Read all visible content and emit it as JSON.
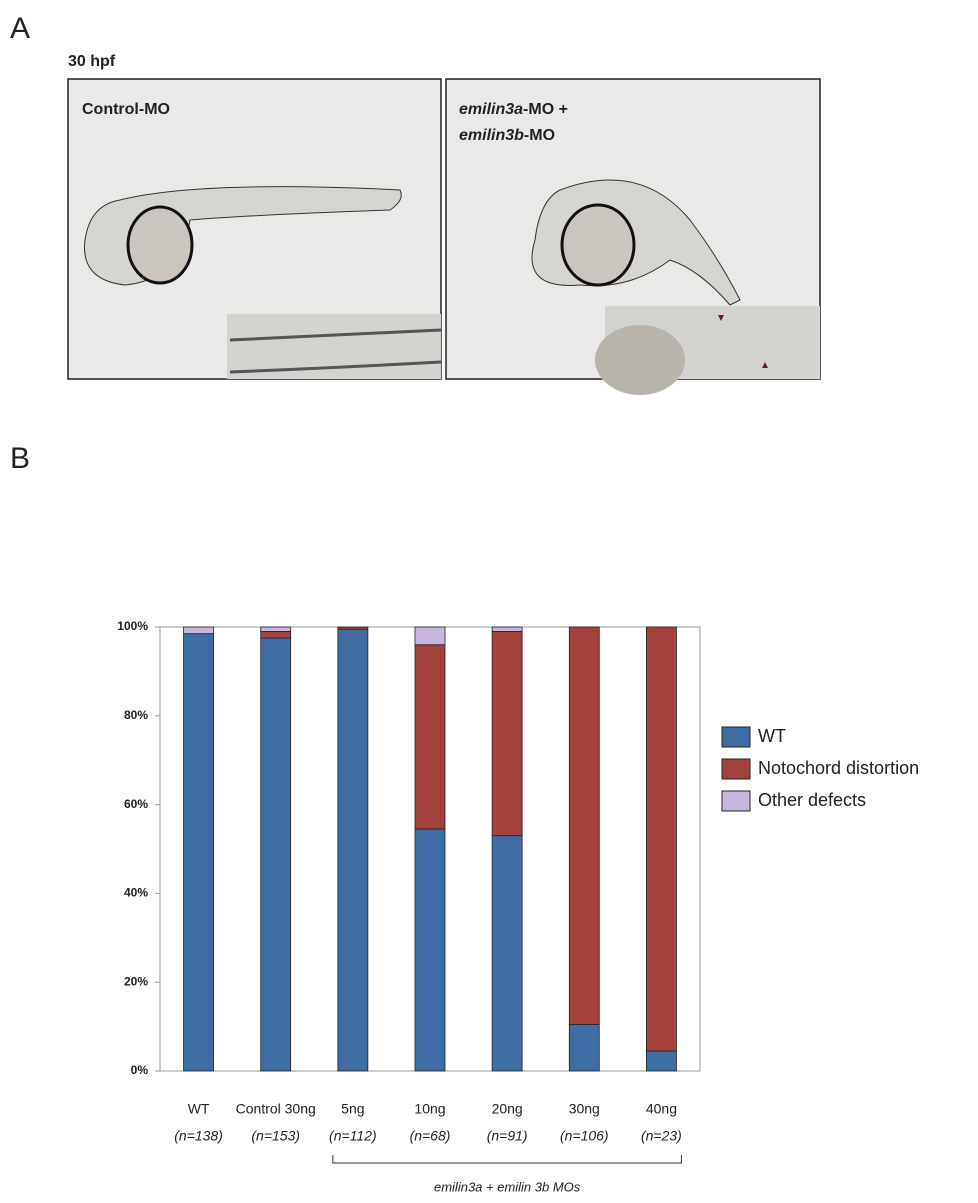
{
  "panel_a": {
    "label": "A",
    "timepoint": "30 hpf",
    "images": [
      {
        "label": "Control-MO"
      },
      {
        "label_parts": [
          "emilin3a",
          "-MO +",
          "emilin3b",
          "-MO"
        ]
      }
    ]
  },
  "panel_b_label": "B",
  "chart_data": {
    "type": "stacked_bar",
    "categories": [
      "WT",
      "Control 30ng",
      "5ng",
      "10ng",
      "20ng",
      "30ng",
      "40ng"
    ],
    "sample_sizes": [
      "(n=138)",
      "(n=153)",
      "(n=112)",
      "(n=68)",
      "(n=91)",
      "(n=106)",
      "(n=23)"
    ],
    "series": [
      {
        "name": "WT",
        "color": "#3e6da3",
        "values": [
          98.5,
          97.5,
          99.5,
          54.5,
          53,
          10.5,
          4.5
        ]
      },
      {
        "name": "Notochord distortion",
        "color": "#a3423d",
        "values": [
          0,
          1.5,
          0.5,
          41.5,
          46,
          89.5,
          95.5
        ]
      },
      {
        "name": "Other defects",
        "color": "#c6b6dd",
        "values": [
          1.5,
          1,
          0,
          4,
          1,
          0,
          0
        ]
      }
    ],
    "ylim": [
      0,
      100
    ],
    "yticks": [
      {
        "value": 0,
        "label": "0%"
      },
      {
        "value": 20,
        "label": "20%"
      },
      {
        "value": 40,
        "label": "40%"
      },
      {
        "value": 60,
        "label": "60%"
      },
      {
        "value": 80,
        "label": "80%"
      },
      {
        "value": 100,
        "label": "100%"
      }
    ],
    "bracket_label": "emilin3a + emilin 3b MOs",
    "bracket_from": 2,
    "bracket_to": 6,
    "legend": "right"
  }
}
